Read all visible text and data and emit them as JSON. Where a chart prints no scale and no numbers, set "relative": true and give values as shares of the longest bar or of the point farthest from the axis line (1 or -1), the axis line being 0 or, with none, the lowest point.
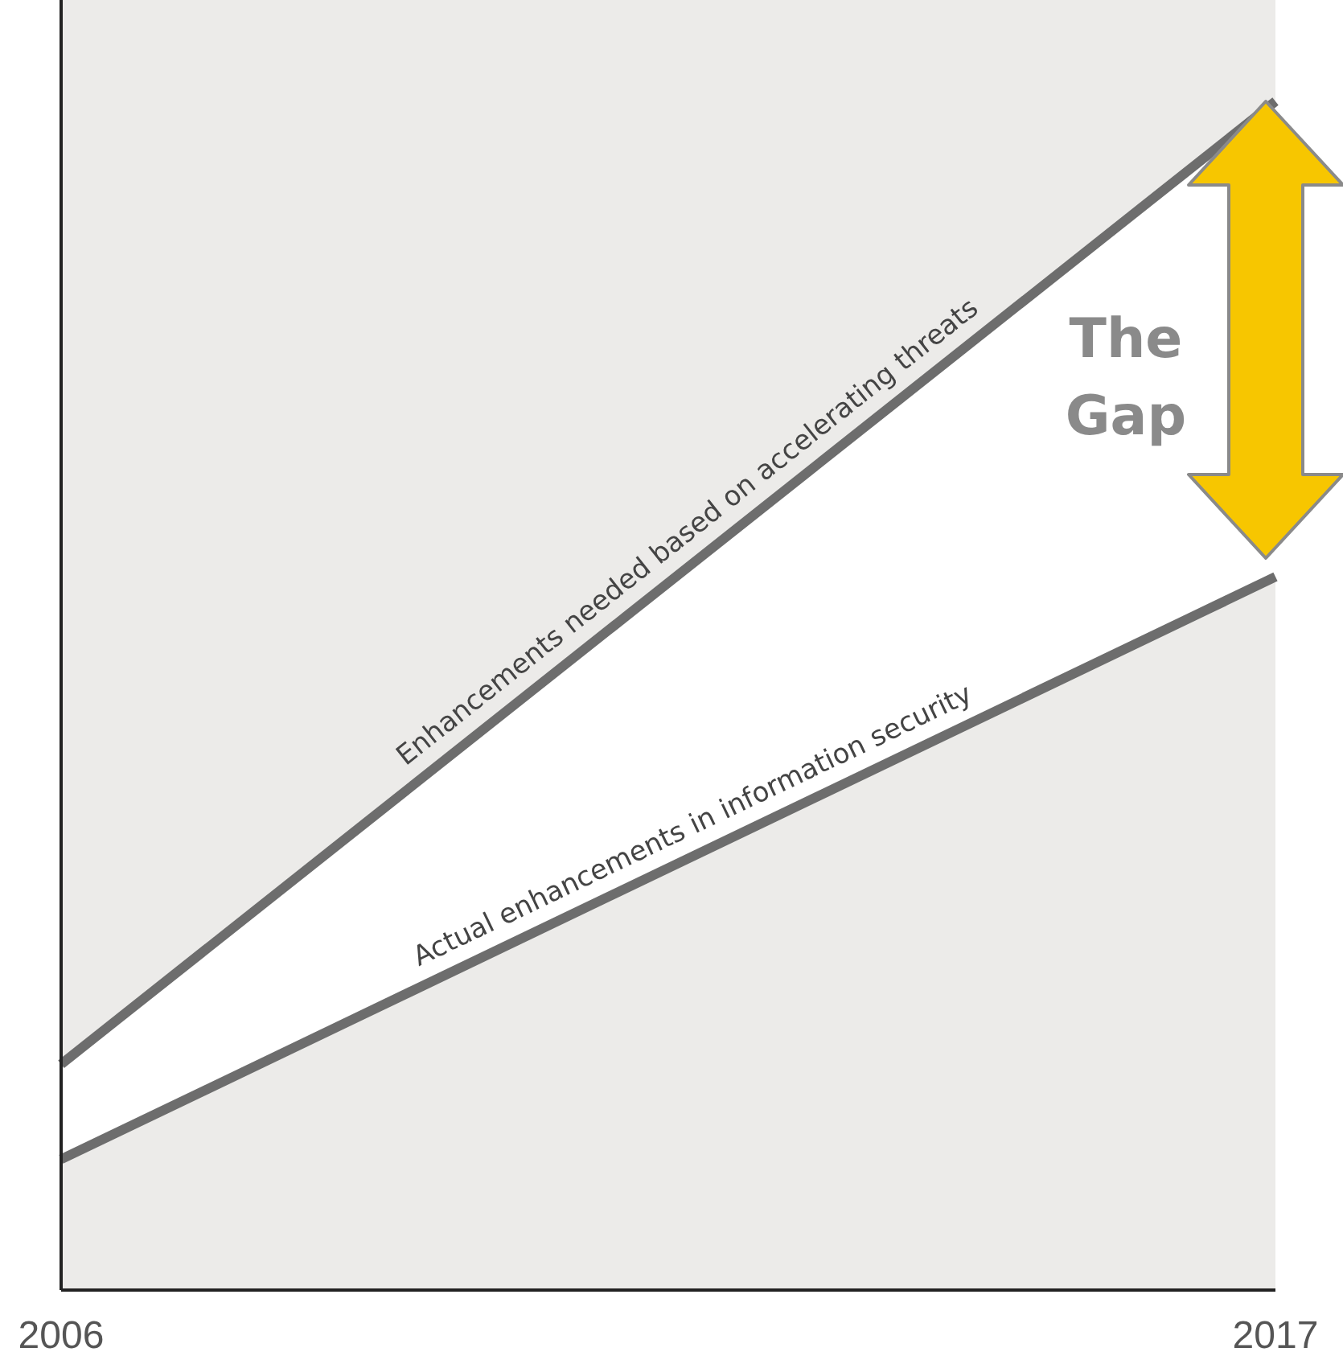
{
  "chart_data": {
    "type": "line",
    "relative": true,
    "x": [
      2006,
      2017
    ],
    "xlim": [
      2006,
      2017
    ],
    "xticks": [
      2006,
      2017
    ],
    "tick_labels": "x",
    "grid": false,
    "legend": false,
    "marker": "none",
    "line_style": "solid",
    "series": [
      {
        "name": "Enhancements needed based on accelerating threats",
        "color": "#6d6d6d",
        "values": [
          0.19,
          1
        ],
        "lower": [
          0.11,
          0.6
        ],
        "upper": [
          0.19,
          1
        ]
      },
      {
        "name": "Actual enhancements in information security",
        "color": "#6d6d6d",
        "values": [
          0.11,
          0.6
        ]
      }
    ],
    "annotations": [
      "The\nGap"
    ]
  }
}
